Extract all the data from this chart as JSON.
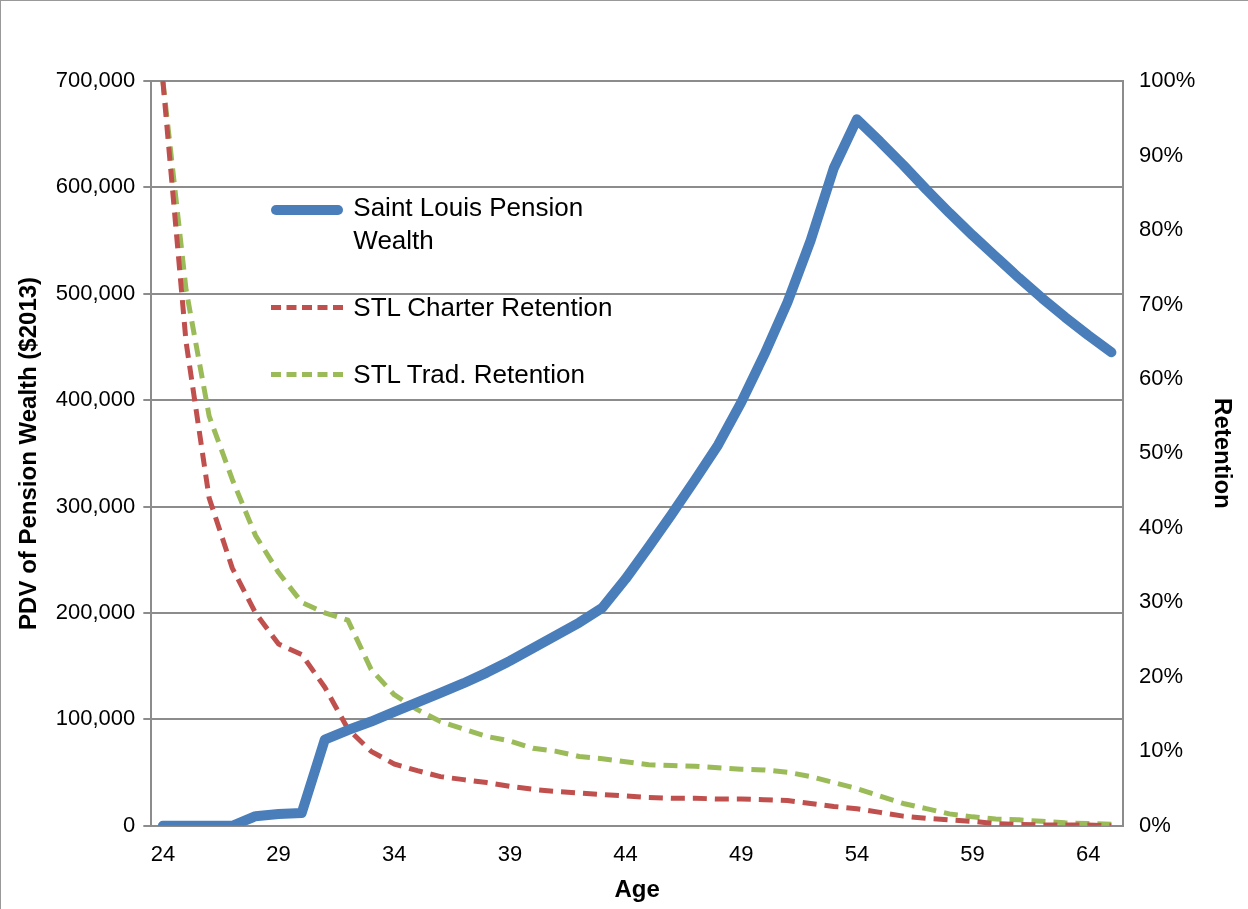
{
  "chart_data": {
    "type": "line",
    "xlabel": "Age",
    "ylabel": "PDV of Pension Wealth ($2013)",
    "y2label": "Retention",
    "x": [
      24,
      25,
      26,
      27,
      28,
      29,
      30,
      31,
      32,
      33,
      34,
      35,
      36,
      37,
      38,
      39,
      40,
      41,
      42,
      43,
      44,
      45,
      46,
      47,
      48,
      49,
      50,
      51,
      52,
      53,
      54,
      55,
      56,
      57,
      58,
      59,
      60,
      61,
      62,
      63,
      64,
      65
    ],
    "xlim": [
      23.5,
      65.5
    ],
    "xticks": [
      24,
      29,
      34,
      39,
      44,
      49,
      54,
      59,
      64
    ],
    "ylim": [
      0,
      700000
    ],
    "yticks": [
      {
        "value": 0,
        "label": "0"
      },
      {
        "value": 100000,
        "label": "100,000"
      },
      {
        "value": 200000,
        "label": "200,000"
      },
      {
        "value": 300000,
        "label": "300,000"
      },
      {
        "value": 400000,
        "label": "400,000"
      },
      {
        "value": 500000,
        "label": "500,000"
      },
      {
        "value": 600000,
        "label": "600,000"
      },
      {
        "value": 700000,
        "label": "700,000"
      }
    ],
    "y2lim": [
      0,
      100
    ],
    "y2ticks": [
      {
        "value": 0,
        "label": "0%"
      },
      {
        "value": 10,
        "label": "10%"
      },
      {
        "value": 20,
        "label": "20%"
      },
      {
        "value": 30,
        "label": "30%"
      },
      {
        "value": 40,
        "label": "40%"
      },
      {
        "value": 50,
        "label": "50%"
      },
      {
        "value": 60,
        "label": "60%"
      },
      {
        "value": 70,
        "label": "70%"
      },
      {
        "value": 80,
        "label": "80%"
      },
      {
        "value": 90,
        "label": "90%"
      },
      {
        "value": 100,
        "label": "100%"
      }
    ],
    "grid": "y",
    "legend": "top left",
    "marker": "none",
    "series": [
      {
        "name": "Saint Louis Pension Wealth",
        "color": "#4a7ebb",
        "line_style": "solid",
        "values": [
          0,
          0,
          0,
          0,
          9000,
          11000,
          12000,
          81000,
          90000,
          98000,
          107000,
          116000,
          125000,
          134000,
          144000,
          155000,
          167000,
          179000,
          191000,
          205000,
          232000,
          262000,
          293000,
          325000,
          358000,
          398000,
          443000,
          492000,
          550000,
          618000,
          664000,
          643000,
          621000,
          598000,
          576000,
          555000,
          535000,
          515000,
          496000,
          478000,
          461000,
          445000
        ]
      },
      {
        "name": "STL Charter Retention",
        "color": "#c0504d",
        "line_style": "dashed",
        "axis": "y2",
        "values": [
          100,
          65,
          44,
          34.6,
          28.6,
          24.4,
          23,
          18.6,
          13,
          10,
          8.3,
          7.4,
          6.6,
          6.2,
          5.8,
          5.3,
          4.9,
          4.6,
          4.4,
          4.2,
          4,
          3.8,
          3.7,
          3.7,
          3.6,
          3.6,
          3.5,
          3.4,
          3,
          2.6,
          2.3,
          1.8,
          1.3,
          1,
          0.8,
          0.6,
          0.3,
          0.2,
          0.1,
          0.1,
          0.1,
          0
        ]
      },
      {
        "name": "STL Trad. Retention",
        "color": "#9bbb59",
        "line_style": "dashed",
        "axis": "y2",
        "values": [
          100,
          72,
          55,
          46.5,
          39,
          34,
          30,
          28.6,
          27.6,
          21,
          17.6,
          15.6,
          14,
          13,
          12,
          11.4,
          10.4,
          10,
          9.3,
          9,
          8.6,
          8.2,
          8.1,
          8,
          7.8,
          7.6,
          7.5,
          7.2,
          6.6,
          5.8,
          5,
          4,
          3,
          2.3,
          1.6,
          1.2,
          0.9,
          0.8,
          0.6,
          0.4,
          0.3,
          0.2
        ]
      }
    ]
  }
}
